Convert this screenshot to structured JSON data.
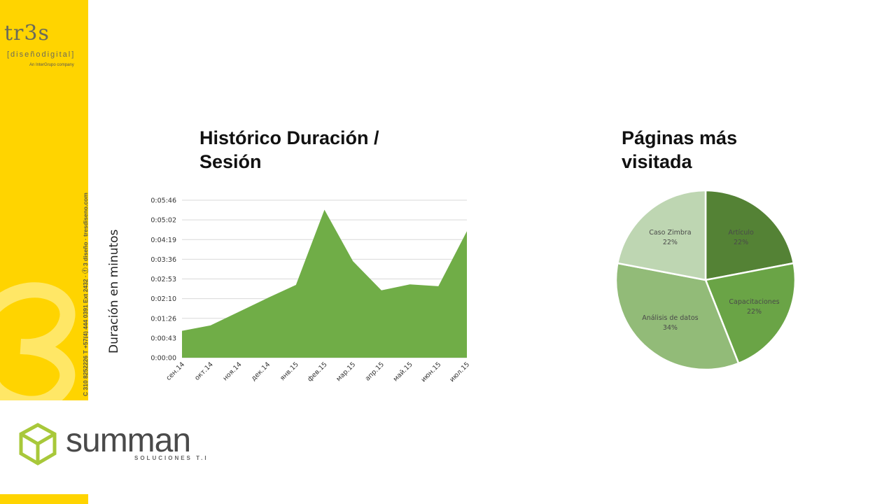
{
  "branding": {
    "tres_name": "tr3s",
    "tres_sub": "[diseñodigital]",
    "tres_tag": "An InterGrupo company",
    "contact": "C 310 8252226   T +57(4) 444 0391 Ext 2432 · ⓕ 3 diseño · tresdiseno.com",
    "summan_name": "summan",
    "summan_sub": "SOLUCIONES T.I"
  },
  "colors": {
    "yellow": "#ffd400",
    "area_green": "#70ad47",
    "summan_green": "#a8c83a"
  },
  "chart_data": [
    {
      "type": "area",
      "title": "Histórico Duración / Sesión",
      "ylabel": "Duración en minutos",
      "xlabel": "",
      "categories": [
        "сен.14",
        "окт.14",
        "ноя.14",
        "дек.14",
        "янв.15",
        "фев.15",
        "мар.15",
        "апр.15",
        "май.15",
        "июн.15",
        "июл.15"
      ],
      "values_seconds": [
        59,
        71,
        101,
        131,
        160,
        325,
        212,
        148,
        161,
        157,
        278
      ],
      "yticks": [
        "0:00:00",
        "0:00:43",
        "0:01:26",
        "0:02:10",
        "0:02:53",
        "0:03:36",
        "0:04:19",
        "0:05:02",
        "0:05:46"
      ],
      "ylim_seconds": [
        0,
        346
      ],
      "grid": true,
      "legend": "none"
    },
    {
      "type": "pie",
      "title": "Páginas más visitada",
      "slices": [
        {
          "label": "Artículo",
          "value": 22,
          "display": "22%",
          "color": "#548235"
        },
        {
          "label": "Capacitaciones",
          "value": 22,
          "display": "22%",
          "color": "#6aa446"
        },
        {
          "label": "Análisis de datos",
          "value": 34,
          "display": "34%",
          "color": "#92bb78"
        },
        {
          "label": "Caso Zimbra",
          "value": 22,
          "display": "22%",
          "color": "#bed6b2"
        }
      ],
      "legend": "none"
    }
  ]
}
